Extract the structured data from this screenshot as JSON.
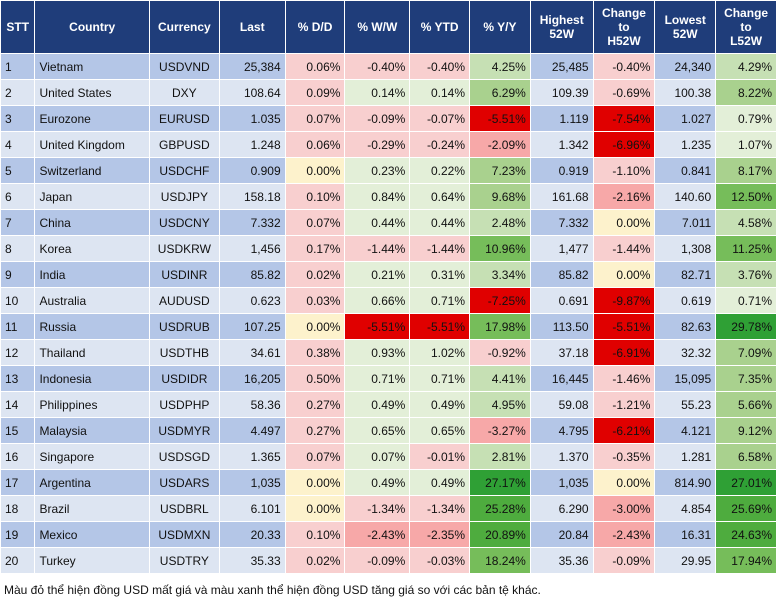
{
  "table": {
    "headers": [
      "STT",
      "Country",
      "Currency",
      "Last",
      "% D/D",
      "% W/W",
      "% YTD",
      "% Y/Y",
      "Highest\n52W",
      "Change\nto\nH52W",
      "Lowest\n52W",
      "Change\nto\nL52W"
    ],
    "rows": [
      [
        "1",
        "Vietnam",
        "USDVND",
        "25,384",
        "0.06%",
        "-0.40%",
        "-0.40%",
        "4.25%",
        "25,485",
        "-0.40%",
        "24,340",
        "4.29%"
      ],
      [
        "2",
        "United States",
        "DXY",
        "108.64",
        "0.09%",
        "0.14%",
        "0.14%",
        "6.29%",
        "109.39",
        "-0.69%",
        "100.38",
        "8.22%"
      ],
      [
        "3",
        "Eurozone",
        "EURUSD",
        "1.035",
        "0.07%",
        "-0.09%",
        "-0.07%",
        "-5.51%",
        "1.119",
        "-7.54%",
        "1.027",
        "0.79%"
      ],
      [
        "4",
        "United Kingdom",
        "GBPUSD",
        "1.248",
        "0.06%",
        "-0.29%",
        "-0.24%",
        "-2.09%",
        "1.342",
        "-6.96%",
        "1.235",
        "1.07%"
      ],
      [
        "5",
        "Switzerland",
        "USDCHF",
        "0.909",
        "0.00%",
        "0.23%",
        "0.22%",
        "7.23%",
        "0.919",
        "-1.10%",
        "0.841",
        "8.17%"
      ],
      [
        "6",
        "Japan",
        "USDJPY",
        "158.18",
        "0.10%",
        "0.84%",
        "0.64%",
        "9.68%",
        "161.68",
        "-2.16%",
        "140.60",
        "12.50%"
      ],
      [
        "7",
        "China",
        "USDCNY",
        "7.332",
        "0.07%",
        "0.44%",
        "0.44%",
        "2.48%",
        "7.332",
        "0.00%",
        "7.011",
        "4.58%"
      ],
      [
        "8",
        "Korea",
        "USDKRW",
        "1,456",
        "0.17%",
        "-1.44%",
        "-1.44%",
        "10.96%",
        "1,477",
        "-1.44%",
        "1,308",
        "11.25%"
      ],
      [
        "9",
        "India",
        "USDINR",
        "85.82",
        "0.02%",
        "0.21%",
        "0.31%",
        "3.34%",
        "85.82",
        "0.00%",
        "82.71",
        "3.76%"
      ],
      [
        "10",
        "Australia",
        "AUDUSD",
        "0.623",
        "0.03%",
        "0.66%",
        "0.71%",
        "-7.25%",
        "0.691",
        "-9.87%",
        "0.619",
        "0.71%"
      ],
      [
        "11",
        "Russia",
        "USDRUB",
        "107.25",
        "0.00%",
        "-5.51%",
        "-5.51%",
        "17.98%",
        "113.50",
        "-5.51%",
        "82.63",
        "29.78%"
      ],
      [
        "12",
        "Thailand",
        "USDTHB",
        "34.61",
        "0.38%",
        "0.93%",
        "1.02%",
        "-0.92%",
        "37.18",
        "-6.91%",
        "32.32",
        "7.09%"
      ],
      [
        "13",
        "Indonesia",
        "USDIDR",
        "16,205",
        "0.50%",
        "0.71%",
        "0.71%",
        "4.41%",
        "16,445",
        "-1.46%",
        "15,095",
        "7.35%"
      ],
      [
        "14",
        "Philippines",
        "USDPHP",
        "58.36",
        "0.27%",
        "0.49%",
        "0.49%",
        "4.95%",
        "59.08",
        "-1.21%",
        "55.23",
        "5.66%"
      ],
      [
        "15",
        "Malaysia",
        "USDMYR",
        "4.497",
        "0.27%",
        "0.65%",
        "0.65%",
        "-3.27%",
        "4.795",
        "-6.21%",
        "4.121",
        "9.12%"
      ],
      [
        "16",
        "Singapore",
        "USDSGD",
        "1.365",
        "0.07%",
        "0.07%",
        "-0.01%",
        "2.81%",
        "1.370",
        "-0.35%",
        "1.281",
        "6.58%"
      ],
      [
        "17",
        "Argentina",
        "USDARS",
        "1,035",
        "0.00%",
        "0.49%",
        "0.49%",
        "27.17%",
        "1,035",
        "0.00%",
        "814.90",
        "27.01%"
      ],
      [
        "18",
        "Brazil",
        "USDBRL",
        "6.101",
        "0.00%",
        "-1.34%",
        "-1.34%",
        "25.28%",
        "6.290",
        "-3.00%",
        "4.854",
        "25.69%"
      ],
      [
        "19",
        "Mexico",
        "USDMXN",
        "20.33",
        "0.10%",
        "-2.43%",
        "-2.35%",
        "20.89%",
        "20.84",
        "-2.43%",
        "16.31",
        "24.63%"
      ],
      [
        "20",
        "Turkey",
        "USDTRY",
        "35.33",
        "0.02%",
        "-0.09%",
        "-0.03%",
        "18.24%",
        "35.36",
        "-0.09%",
        "29.95",
        "17.94%"
      ]
    ]
  },
  "footnote": "Màu đỏ thể hiện đồng USD mất giá và màu xanh thể hiện đồng USD tăng giá so với các bản tệ khác.",
  "colors": {
    "header_bg": "#1f3d7a",
    "row_odd": "#b4c6e7",
    "row_even": "#dde5f2",
    "negative_light": "#f8cfcf",
    "negative_strong": "#e00000",
    "neutral": "#fdf2cc",
    "positive_light": "#e3efd8",
    "positive_strong": "#2fa035"
  }
}
